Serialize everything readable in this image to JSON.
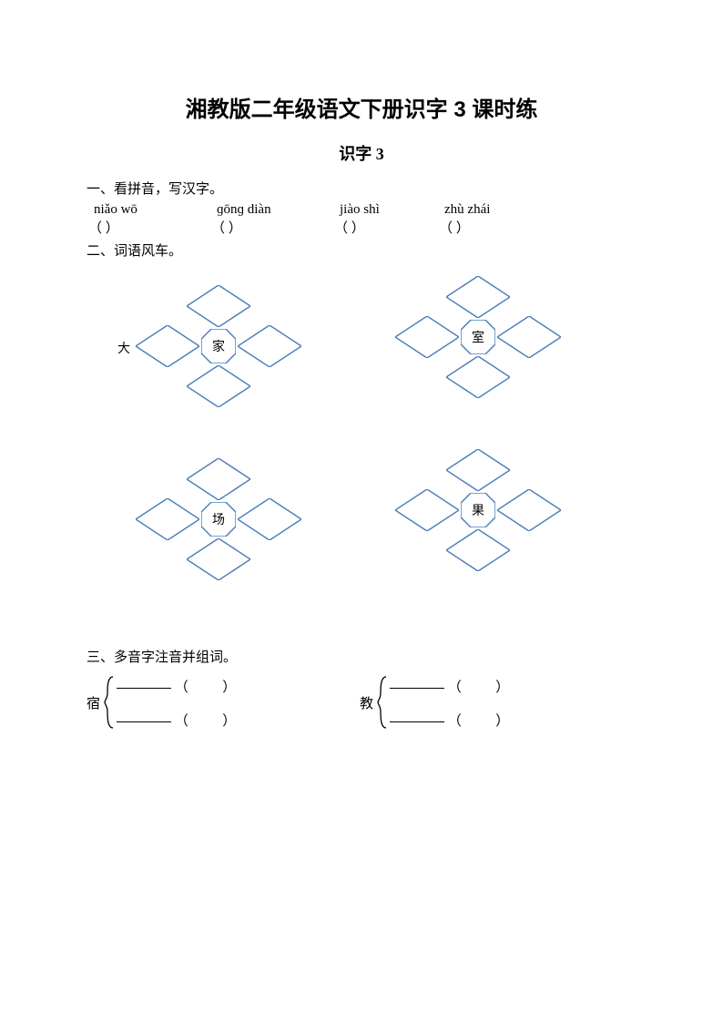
{
  "title": "湘教版二年级语文下册识字 3 课时练",
  "subtitle": "识字 3",
  "section1": {
    "label": "一、看拼音，写汉字。",
    "pinyin": [
      "niǎo wō",
      "ɡōnɡ diàn",
      "jiào shì",
      "zhù zhái"
    ],
    "parens": [
      "（           ）",
      "（                ）",
      "（              ）",
      "（              ）"
    ]
  },
  "section2": {
    "label": "二、词语风车。",
    "windmills": [
      {
        "center": "家",
        "outer_left": "大"
      },
      {
        "center": "室",
        "outer_left": ""
      },
      {
        "center": "场",
        "outer_left": ""
      },
      {
        "center": "果",
        "outer_left": ""
      }
    ],
    "shape_stroke": "#4f81bd",
    "shape_stroke_width": 1.5,
    "shape_fill": "#ffffff"
  },
  "section3": {
    "label": "三、多音字注音并组词。",
    "items": [
      {
        "char": "宿"
      },
      {
        "char": "教"
      }
    ],
    "brace_color": "#000000"
  }
}
